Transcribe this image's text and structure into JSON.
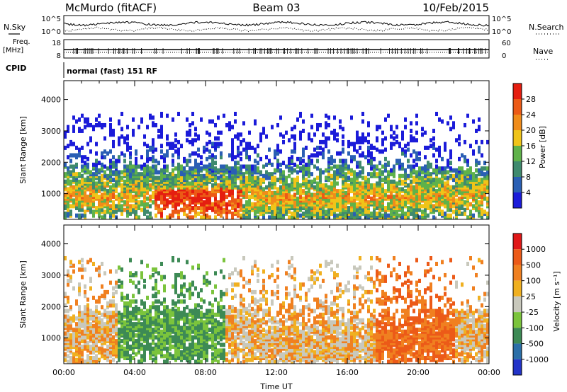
{
  "header": {
    "station": "McMurdo (fitACF)",
    "beam": "Beam 03",
    "date": "10/Feb/2015"
  },
  "top_panels": {
    "nsky_label": "N.Sky",
    "nsky_ticks": [
      "10^5",
      "10^0"
    ],
    "nsearch_label": "N.Search",
    "nsearch_ticks": [
      "10^5",
      "10^0"
    ],
    "freq_label": "Freq.",
    "freq_unit": "[MHz]",
    "freq_ticks": [
      "18",
      "8"
    ],
    "nave_label": "Nave",
    "nave_ticks": [
      "60",
      "0"
    ],
    "cpid_label": "CPID",
    "cpid_value": "normal (fast) 151 RF"
  },
  "chart_data": [
    {
      "type": "heatmap",
      "name": "power-panel",
      "ylabel": "Slant Range [km]",
      "xlabel": "",
      "yticks": [
        1000,
        2000,
        3000,
        4000
      ],
      "ylim": [
        180,
        4600
      ],
      "xlim_hours": [
        0,
        24
      ],
      "colorbar": {
        "title": "Power [dB]",
        "ticks": [
          "4",
          "8",
          "12",
          "16",
          "20",
          "24",
          "28"
        ],
        "colors": [
          "#1b1bd9",
          "#2a5fb4",
          "#3f8a6e",
          "#5fb24a",
          "#f0c419",
          "#f08c1a",
          "#ec5a16",
          "#e51e10"
        ]
      }
    },
    {
      "type": "heatmap",
      "name": "velocity-panel",
      "ylabel": "Slant Range [km]",
      "xlabel": "Time UT",
      "yticks": [
        1000,
        2000,
        3000,
        4000
      ],
      "ylim": [
        180,
        4600
      ],
      "xlim_hours": [
        0,
        24
      ],
      "xticks": [
        "00:00",
        "04:00",
        "08:00",
        "12:00",
        "16:00",
        "20:00",
        "00:00"
      ],
      "colorbar": {
        "title": "Velocity [m s⁻¹]",
        "ticks": [
          "1000",
          "500",
          "100",
          "25",
          "-25",
          "-100",
          "-500",
          "-1000"
        ],
        "colors": [
          "#2233c8",
          "#2b6fa8",
          "#3d8a55",
          "#7bc43c",
          "#c8c8bc",
          "#f0b020",
          "#f08020",
          "#ec5a18",
          "#e01818"
        ]
      }
    }
  ]
}
